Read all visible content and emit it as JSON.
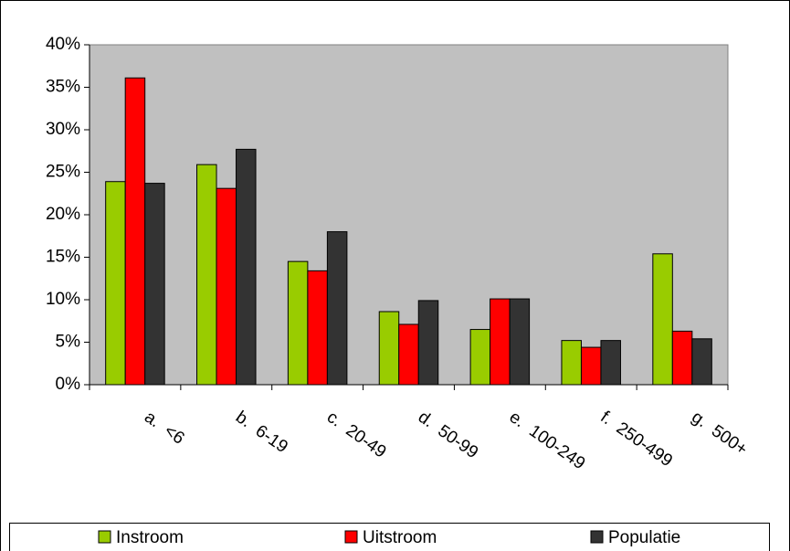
{
  "chart_data": {
    "type": "bar",
    "categories": [
      "a.  <6",
      "b.  6-19",
      "c.  20-49",
      "d.  50-99",
      "e.  100-249",
      "f.  250-499",
      "g.  500+"
    ],
    "series": [
      {
        "name": "Instroom",
        "color": "#99cc00",
        "values": [
          23.9,
          25.9,
          14.5,
          8.6,
          6.5,
          5.2,
          15.4
        ]
      },
      {
        "name": "Uitstroom",
        "color": "#ff0000",
        "values": [
          36.1,
          23.1,
          13.4,
          7.1,
          10.1,
          4.4,
          6.3
        ]
      },
      {
        "name": "Populatie",
        "color": "#333333",
        "values": [
          23.7,
          27.7,
          18.0,
          9.9,
          10.1,
          5.2,
          5.4
        ]
      }
    ],
    "ylim": [
      0,
      40
    ],
    "yticks": [
      {
        "value": 0,
        "label": "0%"
      },
      {
        "value": 5,
        "label": "5%"
      },
      {
        "value": 10,
        "label": "10%"
      },
      {
        "value": 15,
        "label": "15%"
      },
      {
        "value": 20,
        "label": "20%"
      },
      {
        "value": 25,
        "label": "25%"
      },
      {
        "value": 30,
        "label": "30%"
      },
      {
        "value": 35,
        "label": "35%"
      },
      {
        "value": 40,
        "label": "40%"
      }
    ],
    "plot_background": "#c0c0c0",
    "legend": "bottom"
  }
}
